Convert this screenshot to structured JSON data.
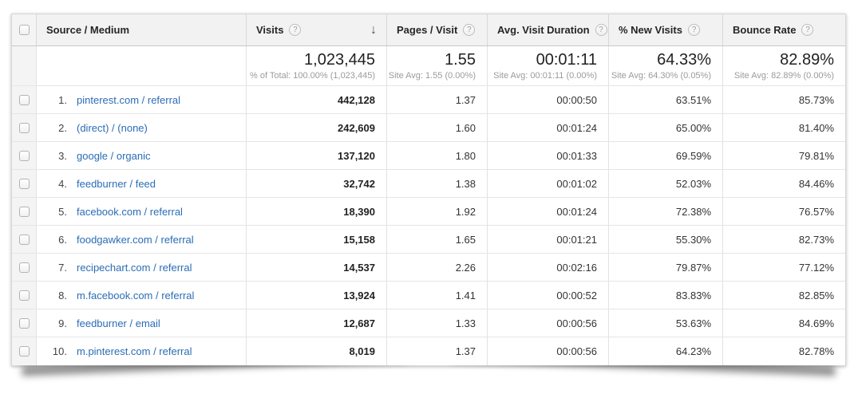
{
  "colors": {
    "link_blue": "#2a6db5",
    "header_bg": "#f2f2f2",
    "border": "#e2e2e2"
  },
  "table": {
    "help_icon": "?",
    "sort_descending_icon": "↓",
    "columns": {
      "source_medium": "Source / Medium",
      "visits": "Visits",
      "pages_per_visit": "Pages / Visit",
      "avg_visit_duration": "Avg. Visit Duration",
      "pct_new_visits": "% New Visits",
      "bounce_rate": "Bounce Rate"
    },
    "summary": {
      "visits": "1,023,445",
      "visits_sub": "% of Total: 100.00% (1,023,445)",
      "pages": "1.55",
      "pages_sub": "Site Avg: 1.55 (0.00%)",
      "duration": "00:01:11",
      "duration_sub": "Site Avg: 00:01:11 (0.00%)",
      "new_visits": "64.33%",
      "new_visits_sub": "Site Avg: 64.30% (0.05%)",
      "bounce": "82.89%",
      "bounce_sub": "Site Avg: 82.89% (0.00%)"
    },
    "rows": [
      {
        "index": "1.",
        "source": "pinterest.com / referral",
        "visits": "442,128",
        "pages": "1.37",
        "duration": "00:00:50",
        "new_visits": "63.51%",
        "bounce": "85.73%"
      },
      {
        "index": "2.",
        "source": "(direct) / (none)",
        "visits": "242,609",
        "pages": "1.60",
        "duration": "00:01:24",
        "new_visits": "65.00%",
        "bounce": "81.40%"
      },
      {
        "index": "3.",
        "source": "google / organic",
        "visits": "137,120",
        "pages": "1.80",
        "duration": "00:01:33",
        "new_visits": "69.59%",
        "bounce": "79.81%"
      },
      {
        "index": "4.",
        "source": "feedburner / feed",
        "visits": "32,742",
        "pages": "1.38",
        "duration": "00:01:02",
        "new_visits": "52.03%",
        "bounce": "84.46%"
      },
      {
        "index": "5.",
        "source": "facebook.com / referral",
        "visits": "18,390",
        "pages": "1.92",
        "duration": "00:01:24",
        "new_visits": "72.38%",
        "bounce": "76.57%"
      },
      {
        "index": "6.",
        "source": "foodgawker.com / referral",
        "visits": "15,158",
        "pages": "1.65",
        "duration": "00:01:21",
        "new_visits": "55.30%",
        "bounce": "82.73%"
      },
      {
        "index": "7.",
        "source": "recipechart.com / referral",
        "visits": "14,537",
        "pages": "2.26",
        "duration": "00:02:16",
        "new_visits": "79.87%",
        "bounce": "77.12%"
      },
      {
        "index": "8.",
        "source": "m.facebook.com / referral",
        "visits": "13,924",
        "pages": "1.41",
        "duration": "00:00:52",
        "new_visits": "83.83%",
        "bounce": "82.85%"
      },
      {
        "index": "9.",
        "source": "feedburner / email",
        "visits": "12,687",
        "pages": "1.33",
        "duration": "00:00:56",
        "new_visits": "53.63%",
        "bounce": "84.69%"
      },
      {
        "index": "10.",
        "source": "m.pinterest.com / referral",
        "visits": "8,019",
        "pages": "1.37",
        "duration": "00:00:56",
        "new_visits": "64.23%",
        "bounce": "82.78%"
      }
    ]
  }
}
